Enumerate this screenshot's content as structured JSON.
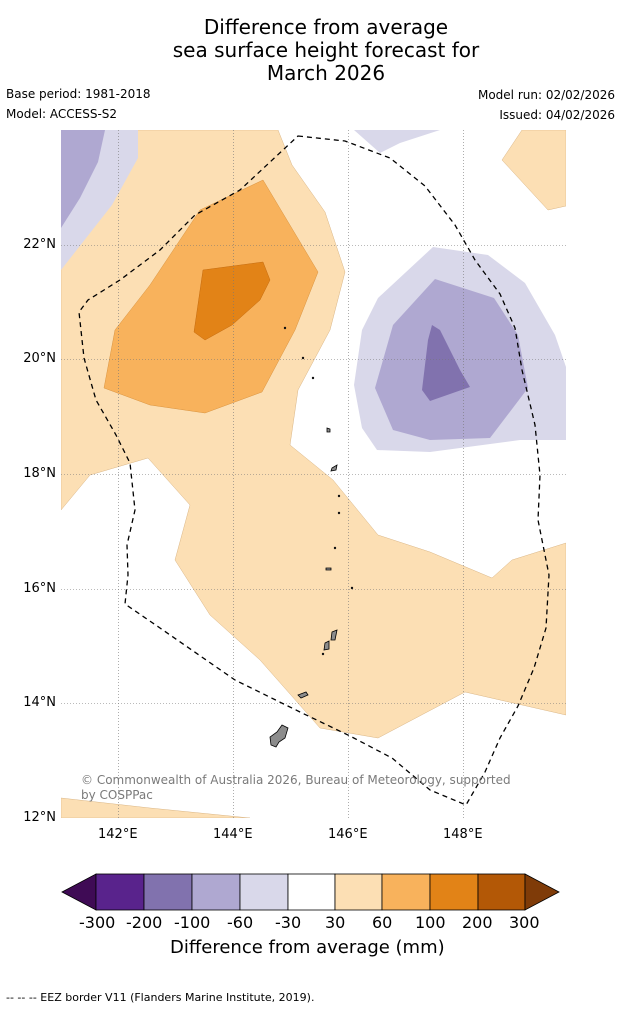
{
  "title": {
    "line1": "Difference from average",
    "line2": "sea surface height forecast for",
    "line3": "March 2026"
  },
  "meta": {
    "base_period": "Base period: 1981-2018",
    "model": "Model: ACCESS-S2",
    "model_run": "Model run: 02/02/2026",
    "issued": "Issued: 04/02/2026"
  },
  "map": {
    "lat_labels": [
      "22°N",
      "20°N",
      "18°N",
      "16°N",
      "14°N",
      "12°N"
    ],
    "lon_labels": [
      "142°E",
      "144°E",
      "146°E",
      "148°E"
    ],
    "copyright": "© Commonwealth of Australia 2026, Bureau of Meteorology, supported by COSPPac"
  },
  "colorbar": {
    "tick_labels": [
      "-300",
      "-200",
      "-100",
      "-60",
      "-30",
      "30",
      "60",
      "100",
      "200",
      "300"
    ],
    "label": "Difference from average (mm)",
    "colors": {
      "below": "#3f0b55",
      "bins": [
        "#59238c",
        "#8172ae",
        "#afa8d1",
        "#d9d8ea",
        "#ffffff",
        "#fcdfb4",
        "#f8b25c",
        "#e28317",
        "#b35806"
      ],
      "above": "#7f3b08"
    }
  },
  "footnote": "--  --  -- EEZ border V11 (Flanders Marine Institute, 2019)."
}
